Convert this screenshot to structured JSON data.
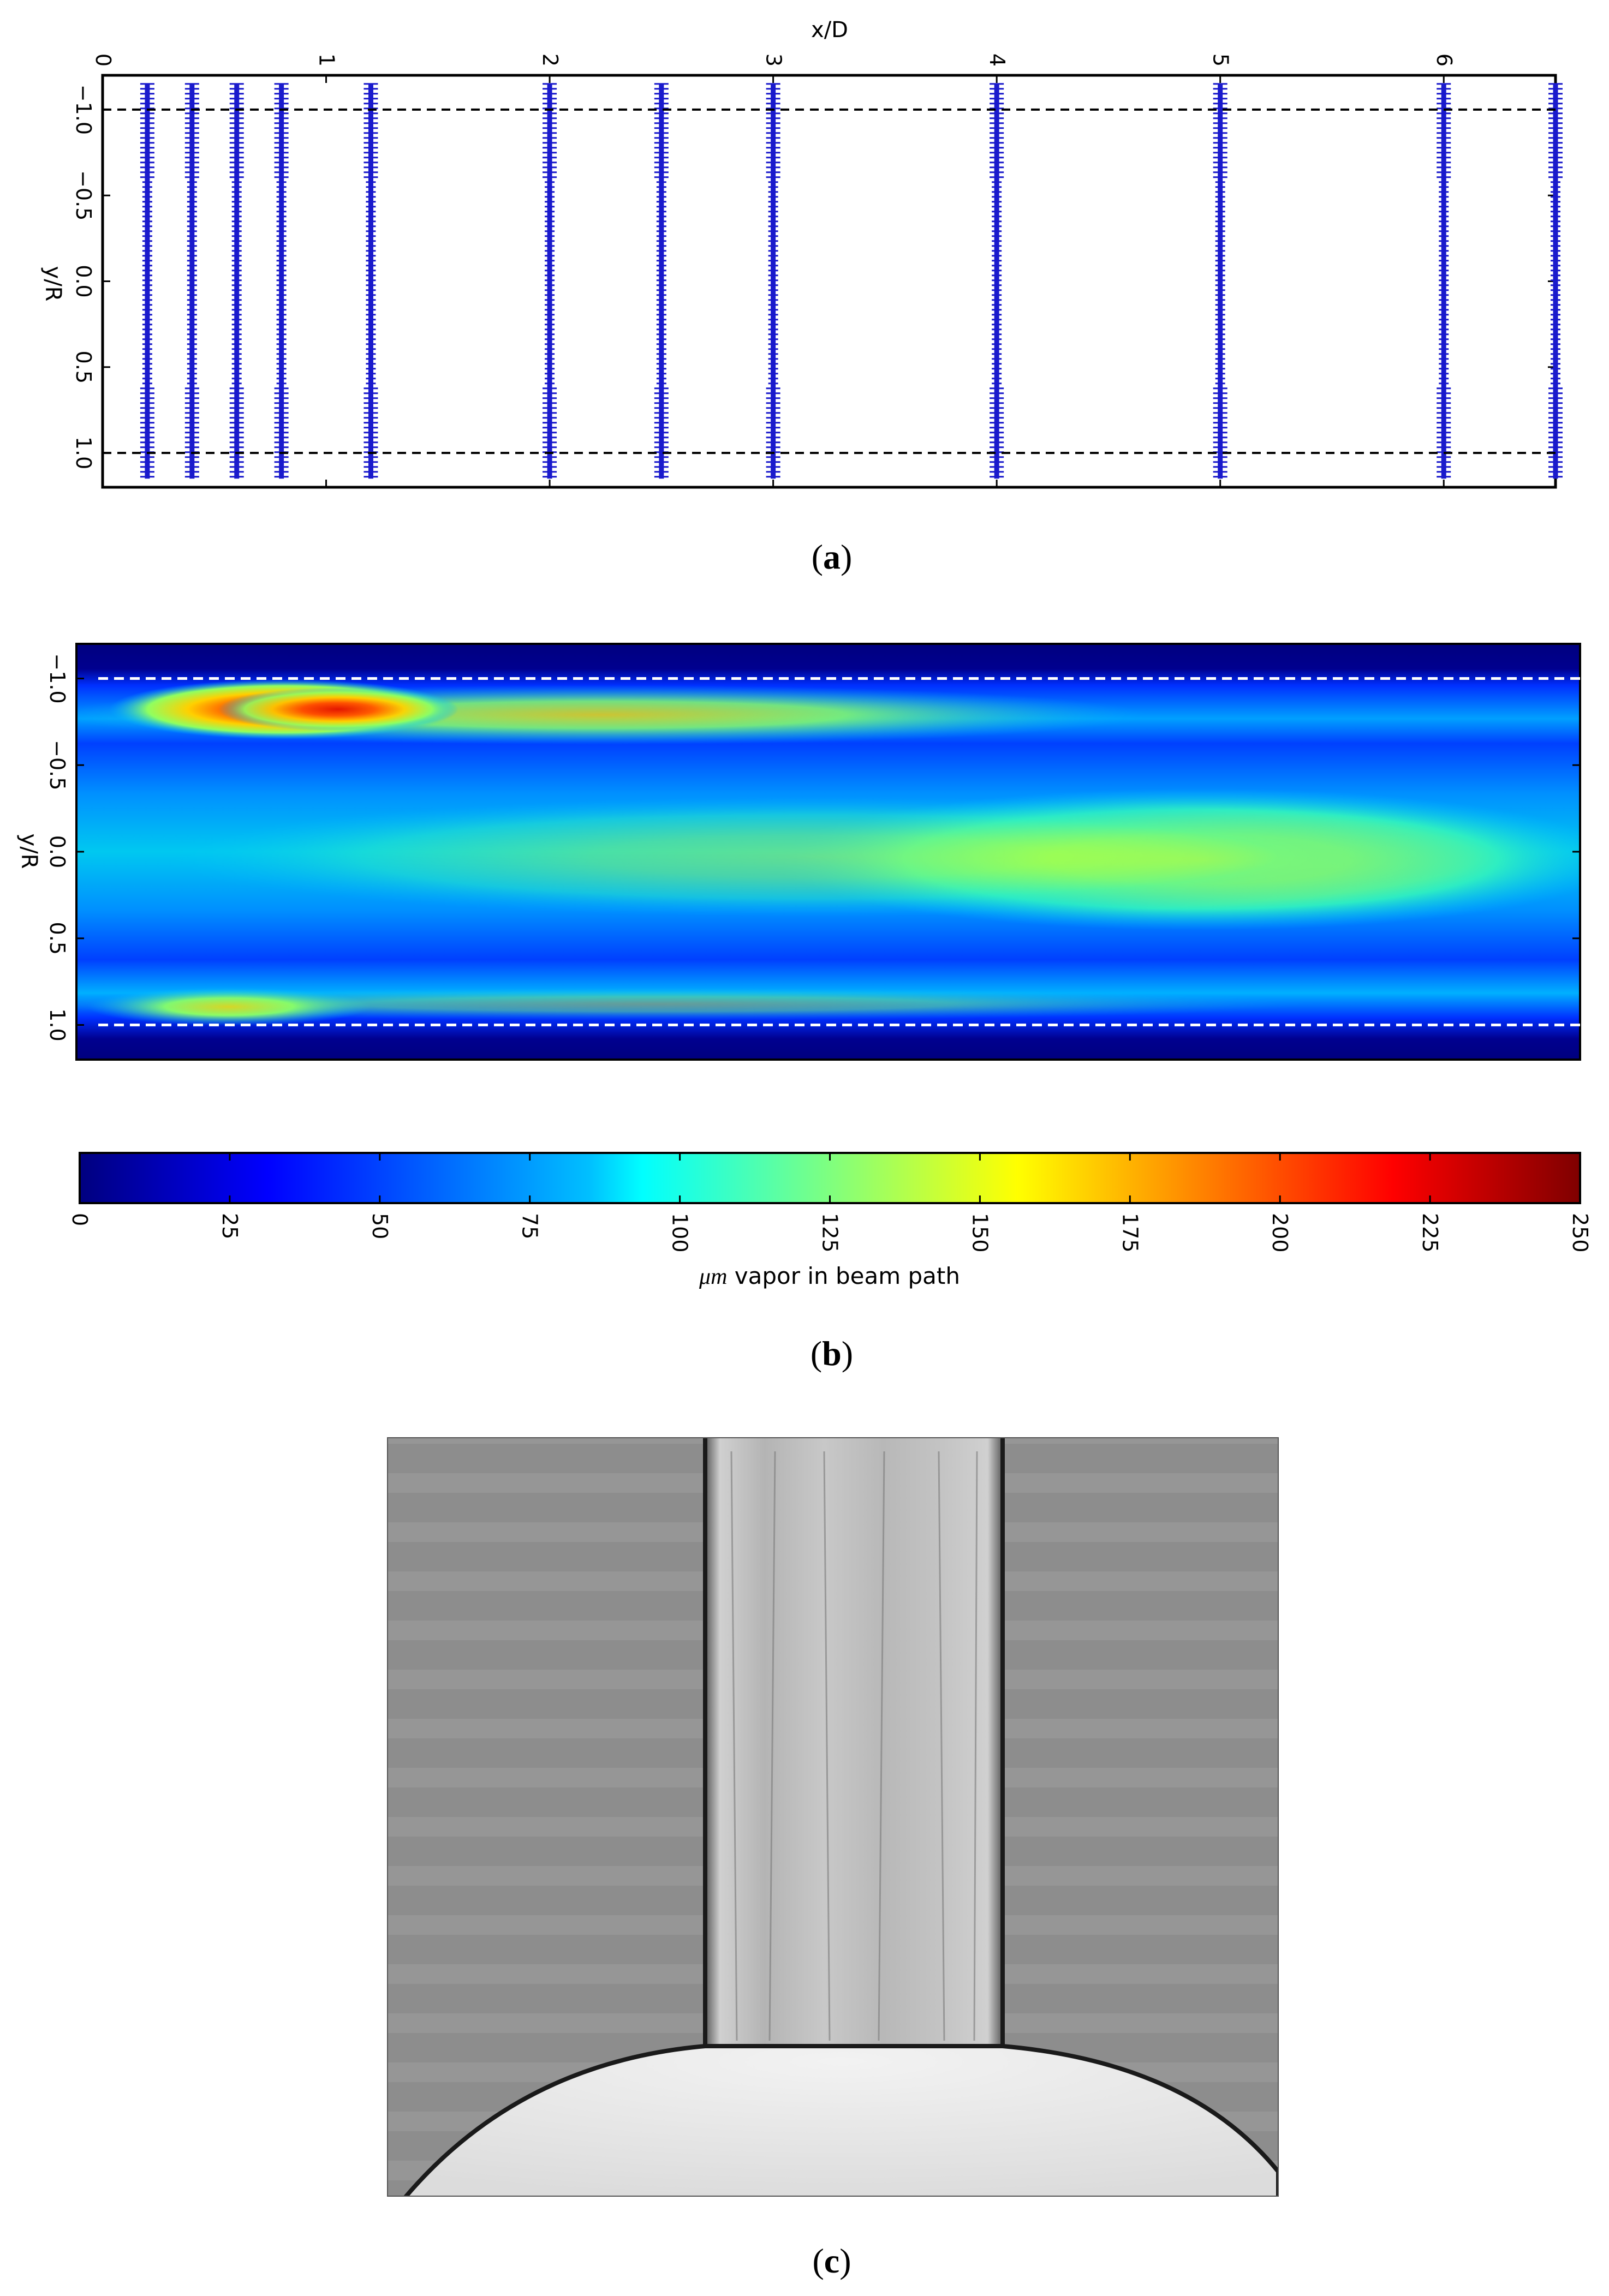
{
  "colors": {
    "marker": "#1a1acc",
    "dashed_a": "#000000",
    "dashed_b": "#ffffff",
    "jet": [
      "#00007f",
      "#0000ff",
      "#007fff",
      "#00ffff",
      "#7fff7f",
      "#ffff00",
      "#ff7f00",
      "#ff0000",
      "#7f0000"
    ]
  },
  "panels": {
    "a": {
      "label": "a"
    },
    "b": {
      "label": "b"
    },
    "c": {
      "label": "c"
    }
  },
  "chart_data": [
    {
      "id": "a",
      "type": "scatter",
      "xlabel": "x/D",
      "ylabel": "y/R",
      "xlim": [
        0,
        6.5
      ],
      "ylim": [
        -1.2,
        1.2
      ],
      "y_inverted": true,
      "x_ticks": [
        "0",
        "1",
        "2",
        "3",
        "4",
        "5",
        "6"
      ],
      "y_ticks": [
        "−1.0",
        "−0.5",
        "0.0",
        "0.5",
        "1.0"
      ],
      "y_tick_values": [
        -1.0,
        -0.5,
        0.0,
        0.5,
        1.0
      ],
      "measurement_x_positions": [
        0.2,
        0.4,
        0.6,
        0.8,
        1.2,
        2.0,
        2.5,
        3.0,
        4.0,
        5.0,
        6.0,
        6.5
      ],
      "dashed_lines_y": [
        -1.0,
        1.0
      ],
      "grid": false
    },
    {
      "id": "b",
      "type": "heatmap",
      "ylabel": "y/R",
      "xlim": [
        0,
        6.5
      ],
      "ylim": [
        -1.2,
        1.2
      ],
      "y_inverted": true,
      "y_ticks": [
        "−1.0",
        "−0.5",
        "0.0",
        "0.5",
        "1.0"
      ],
      "y_tick_values": [
        -1.0,
        -0.5,
        0.0,
        0.5,
        1.0
      ],
      "dashed_lines_y": [
        -1.0,
        1.0
      ],
      "colorbar": {
        "label_math": "μm",
        "label_rest": " vapor in beam path",
        "range": [
          0,
          250
        ],
        "ticks": [
          "0",
          "25",
          "50",
          "75",
          "100",
          "125",
          "150",
          "175",
          "200",
          "225",
          "250"
        ],
        "tick_values": [
          0,
          25,
          50,
          75,
          100,
          125,
          150,
          175,
          200,
          225,
          250
        ]
      },
      "features": [
        {
          "x_peak": 1.2,
          "y": -0.85,
          "value_max": 230
        },
        {
          "x_peak": 5.0,
          "y": 0.0,
          "value_max": 155
        },
        {
          "x_peak": 0.2,
          "y": 0.9,
          "value_max": 150
        }
      ]
    }
  ]
}
